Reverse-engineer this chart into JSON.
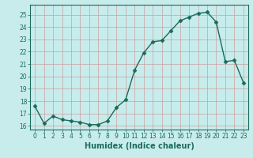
{
  "x": [
    0,
    1,
    2,
    3,
    4,
    5,
    6,
    7,
    8,
    9,
    10,
    11,
    12,
    13,
    14,
    15,
    16,
    17,
    18,
    19,
    20,
    21,
    22,
    23
  ],
  "y": [
    17.6,
    16.2,
    16.8,
    16.5,
    16.4,
    16.3,
    16.1,
    16.1,
    16.4,
    17.5,
    18.1,
    20.5,
    21.9,
    22.8,
    22.9,
    23.7,
    24.5,
    24.8,
    25.1,
    25.2,
    24.4,
    21.2,
    21.3,
    19.5
  ],
  "line_color": "#1a6b5a",
  "marker": "D",
  "markersize": 2.5,
  "linewidth": 1.0,
  "bg_color": "#c8ecec",
  "grid_major_color": "#b0b0b0",
  "grid_minor_color": "#d8d8d8",
  "xlabel": "Humidex (Indice chaleur)",
  "xlabel_fontsize": 7,
  "ylabel_ticks": [
    16,
    17,
    18,
    19,
    20,
    21,
    22,
    23,
    24,
    25
  ],
  "xlim": [
    -0.5,
    23.5
  ],
  "ylim": [
    15.7,
    25.8
  ],
  "xtick_fontsize": 5.5,
  "ytick_fontsize": 5.5
}
